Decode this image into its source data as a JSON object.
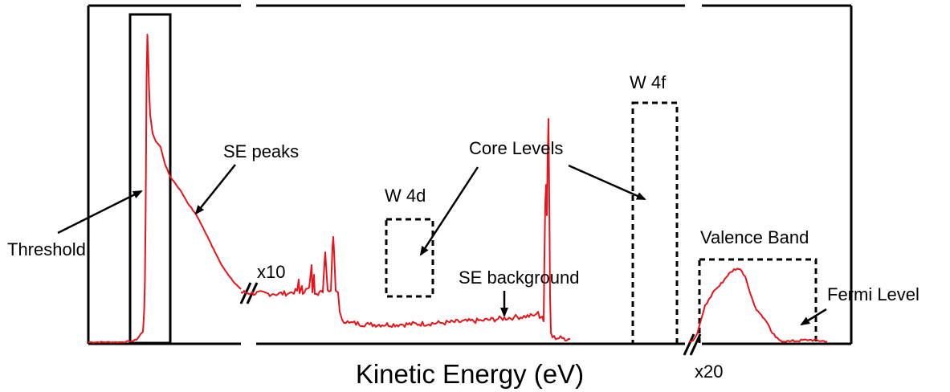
{
  "chart_data": {
    "type": "line",
    "title": "",
    "xlabel": "Kinetic Energy (eV)",
    "ylabel": "",
    "grid": false,
    "line_color": "#e8141b",
    "segments": [
      {
        "region": "left",
        "scale": "",
        "points": [
          [
            0,
            2
          ],
          [
            40,
            2
          ],
          [
            52,
            3
          ],
          [
            60,
            5
          ],
          [
            65,
            12
          ],
          [
            68,
            15
          ],
          [
            69.5,
            40
          ],
          [
            70.5,
            80
          ],
          [
            71.5,
            180
          ],
          [
            72.5,
            330
          ],
          [
            73.5,
            385
          ],
          [
            74.5,
            360
          ],
          [
            75.5,
            320
          ],
          [
            77,
            285
          ],
          [
            80,
            262
          ],
          [
            84,
            252
          ],
          [
            90,
            245
          ],
          [
            96,
            222
          ],
          [
            102,
            208
          ],
          [
            108,
            200
          ],
          [
            114,
            192
          ],
          [
            120,
            182
          ],
          [
            126,
            172
          ],
          [
            132,
            164
          ],
          [
            138,
            154
          ],
          [
            144,
            142
          ],
          [
            150,
            130
          ],
          [
            156,
            118
          ],
          [
            162,
            106
          ],
          [
            168,
            95
          ],
          [
            174,
            86
          ],
          [
            180,
            78
          ],
          [
            186,
            72
          ],
          [
            190,
            68
          ]
        ]
      },
      {
        "region": "middle",
        "scale": "x10",
        "points": [
          [
            0,
            64
          ],
          [
            40,
            62
          ],
          [
            60,
            63
          ],
          [
            70,
            66
          ],
          [
            72,
            80
          ],
          [
            73,
            63
          ],
          [
            76,
            72
          ],
          [
            77,
            62
          ],
          [
            85,
            70
          ],
          [
            88,
            98
          ],
          [
            89,
            64
          ],
          [
            91,
            86
          ],
          [
            92,
            62
          ],
          [
            102,
            64
          ],
          [
            104,
            100
          ],
          [
            105,
            114
          ],
          [
            106,
            98
          ],
          [
            108,
            67
          ],
          [
            112,
            66
          ],
          [
            114,
            120
          ],
          [
            115,
            133
          ],
          [
            116,
            115
          ],
          [
            118,
            66
          ],
          [
            121,
            64
          ],
          [
            123,
            40
          ],
          [
            126,
            30
          ],
          [
            135,
            26
          ],
          [
            160,
            24
          ],
          [
            200,
            24
          ],
          [
            250,
            26
          ],
          [
            300,
            29
          ],
          [
            340,
            33
          ],
          [
            365,
            35
          ],
          [
            370,
            40
          ],
          [
            372,
            32
          ],
          [
            375,
            34
          ],
          [
            377,
            28
          ],
          [
            378,
            110
          ],
          [
            379,
            175
          ],
          [
            380,
            198
          ],
          [
            381,
            160
          ],
          [
            382,
            235
          ],
          [
            383,
            280
          ],
          [
            384,
            180
          ],
          [
            385,
            60
          ],
          [
            386,
            14
          ],
          [
            388,
            8
          ],
          [
            400,
            7
          ],
          [
            410,
            6
          ]
        ]
      },
      {
        "region": "right",
        "scale": "x20",
        "points": [
          [
            0,
            3
          ],
          [
            5,
            4
          ],
          [
            10,
            12
          ],
          [
            15,
            30
          ],
          [
            20,
            48
          ],
          [
            25,
            56
          ],
          [
            32,
            67
          ],
          [
            38,
            72
          ],
          [
            44,
            80
          ],
          [
            50,
            88
          ],
          [
            56,
            93
          ],
          [
            62,
            93
          ],
          [
            66,
            90
          ],
          [
            70,
            84
          ],
          [
            74,
            70
          ],
          [
            78,
            58
          ],
          [
            84,
            42
          ],
          [
            90,
            36
          ],
          [
            96,
            28
          ],
          [
            102,
            16
          ],
          [
            108,
            8
          ],
          [
            114,
            4
          ],
          [
            125,
            3
          ],
          [
            150,
            5
          ],
          [
            172,
            3
          ]
        ]
      }
    ],
    "annotations": {
      "threshold": "Threshold",
      "se_peaks": "SE peaks",
      "w4d": "W 4d",
      "core_levels": "Core Levels",
      "w4f": "W 4f",
      "se_background": "SE background",
      "valence_band": "Valence Band",
      "fermi_level": "Fermi Level",
      "scale_mid": "x10",
      "scale_right": "x20"
    }
  }
}
